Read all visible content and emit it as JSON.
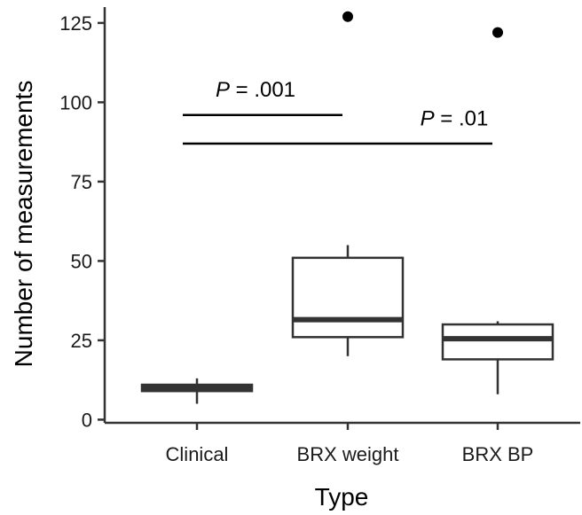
{
  "chart_data": {
    "type": "box",
    "xlabel": "Type",
    "ylabel": "Number of measurements",
    "ylim": [
      -1,
      130
    ],
    "yticks": [
      0,
      25,
      50,
      75,
      100,
      125
    ],
    "grid": false,
    "categories": [
      "Clinical",
      "BRX weight",
      "BRX BP"
    ],
    "boxes": [
      {
        "category": "Clinical",
        "min": 5,
        "q1": 9,
        "median": 10,
        "q3": 11,
        "max": 13,
        "outliers": []
      },
      {
        "category": "BRX weight",
        "min": 20,
        "q1": 26,
        "median": 31.5,
        "q3": 51,
        "max": 55,
        "outliers": [
          127
        ]
      },
      {
        "category": "BRX BP",
        "min": 8,
        "q1": 19,
        "median": 25.5,
        "q3": 30,
        "max": 31,
        "outliers": [
          122
        ]
      }
    ],
    "annotations": [
      {
        "text": "P = .001",
        "italic_prefix": "P",
        "rest": " = .001",
        "from": "Clinical",
        "to": "BRX weight",
        "y": 96,
        "label_y": 104
      },
      {
        "text": "P = .01",
        "italic_prefix": "P",
        "rest": " = .01",
        "from": "Clinical",
        "to": "BRX BP",
        "y": 87,
        "label_y": 95
      }
    ]
  }
}
